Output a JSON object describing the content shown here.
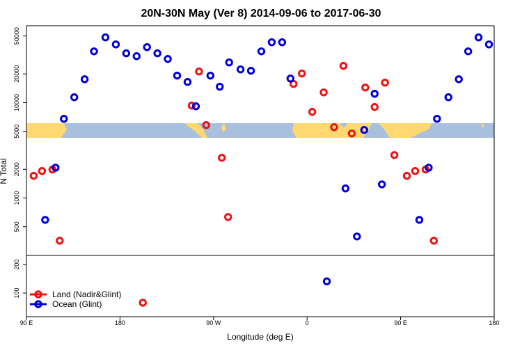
{
  "chart_data": {
    "type": "scatter",
    "title": "20N-30N May (Ver 8)   2014-09-06 to 2017-06-30",
    "xlabel": "Longitude (deg E)",
    "ylabel": "N Total",
    "xlim": [
      90,
      540
    ],
    "xticks": [
      {
        "value": 90,
        "label": "90 E"
      },
      180,
      {
        "value": 270,
        "label": "90 W"
      },
      {
        "value": 360,
        "label": "0"
      },
      {
        "value": 450,
        "label": "90 E"
      },
      {
        "value": 540,
        "label": "180"
      }
    ],
    "ylim": [
      250,
      64000
    ],
    "yscale": "log",
    "yticks": [
      500,
      1000,
      2000,
      5000,
      10000,
      20000,
      50000
    ],
    "y2lim": [
      17,
      232
    ],
    "y2ticks": [
      100,
      200
    ],
    "legend": "lower left",
    "series": [
      {
        "name": "Land (Nadir&Glint)",
        "color": "#ee1111",
        "x": [
          97,
          105,
          115,
          122,
          202,
          249,
          256,
          263,
          278,
          284,
          347,
          355,
          365,
          376,
          386,
          395,
          403,
          416,
          425,
          435,
          444,
          456,
          464,
          474,
          482
        ],
        "values": [
          1710,
          1920,
          1990,
          357,
          66,
          9310,
          21200,
          5820,
          2640,
          632,
          15700,
          20200,
          8000,
          12800,
          5530,
          24300,
          4750,
          14400,
          9000,
          16200,
          2820,
          1710,
          1920,
          1990,
          357
        ]
      },
      {
        "name": "Ocean (Glint)",
        "color": "#0000dd",
        "x": [
          108,
          118,
          126,
          136,
          146,
          155,
          166,
          176,
          186,
          196,
          206,
          216,
          226,
          235,
          245,
          253,
          267,
          276,
          285,
          296,
          306,
          316,
          326,
          336,
          344,
          379,
          397,
          408,
          415,
          425,
          432,
          468,
          477,
          485,
          496,
          506,
          515,
          525,
          535
        ],
        "values": [
          590,
          2080,
          6770,
          11400,
          17600,
          34500,
          48300,
          40800,
          32900,
          30700,
          38200,
          32900,
          28700,
          19200,
          16500,
          9160,
          19200,
          14700,
          26400,
          22300,
          21600,
          34500,
          43000,
          43000,
          17900,
          141,
          1260,
          395,
          5170,
          12400,
          1390,
          590,
          2080,
          6770,
          11400,
          17600,
          34500,
          48300,
          40800
        ]
      }
    ]
  }
}
